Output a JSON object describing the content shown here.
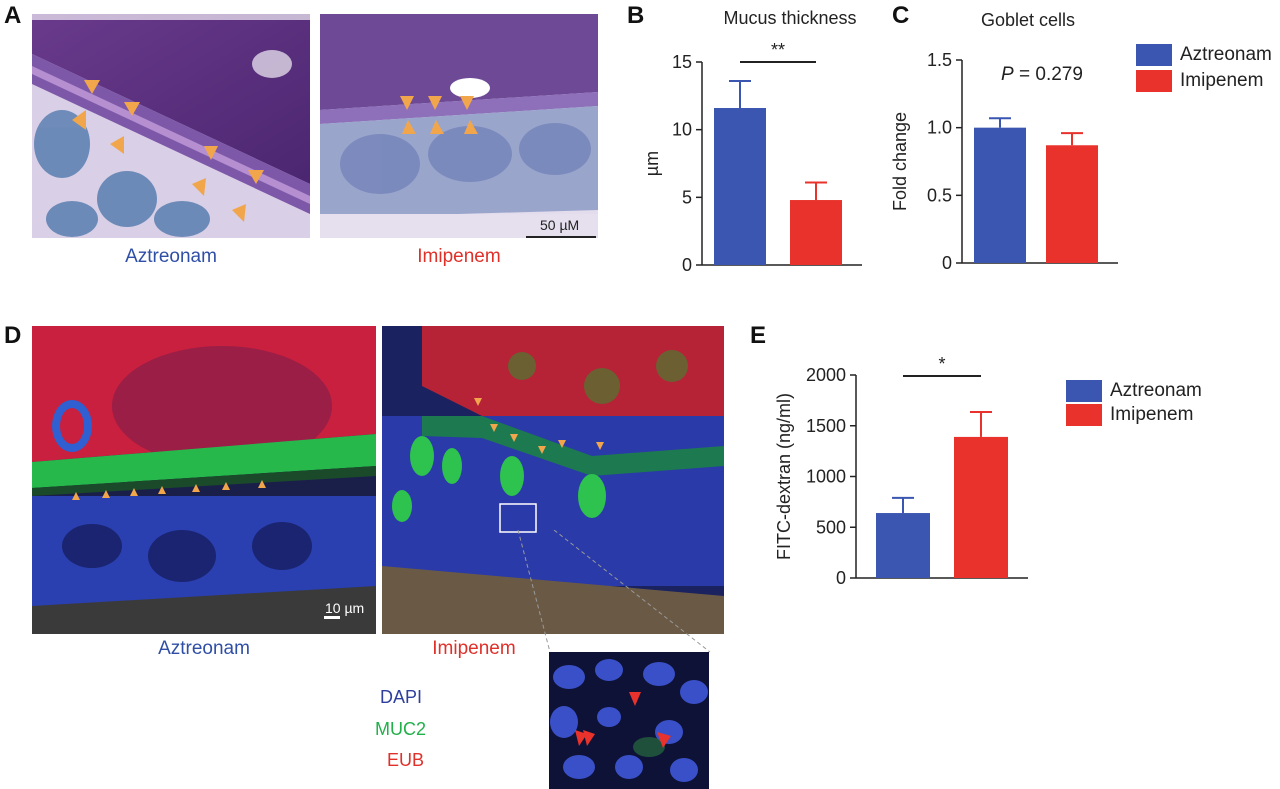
{
  "panels": {
    "A": {
      "letter": "A",
      "left_caption": "Aztreonam",
      "right_caption": "Imipenem",
      "scale_bar": "50 µM"
    },
    "D": {
      "letter": "D",
      "left_caption": "Aztreonam",
      "right_caption": "Imipenem",
      "scale_bar": "10 µm",
      "stains": [
        "DAPI",
        "MUC2",
        "EUB"
      ]
    },
    "B": {
      "letter": "B"
    },
    "C": {
      "letter": "C"
    },
    "E": {
      "letter": "E"
    }
  },
  "colors": {
    "aztreonam": "#3a56b0",
    "imipenem": "#e8322b",
    "dapi": "#2f3f9e",
    "muc2": "#22b04a",
    "eub": "#e0302a",
    "arrowhead": "#f2a64b"
  },
  "legends": [
    {
      "items": [
        "Aztreonam",
        "Imipenem"
      ]
    },
    {
      "items": [
        "Aztreonam",
        "Imipenem"
      ]
    }
  ],
  "chart_data": [
    {
      "id": "B",
      "type": "bar",
      "title": "Mucus thickness",
      "ylabel": "µm",
      "categories": [
        "Aztreonam",
        "Imipenem"
      ],
      "values": [
        11.6,
        4.8
      ],
      "errors": [
        2.0,
        1.3
      ],
      "ylim": [
        0,
        15
      ],
      "yticks": [
        0,
        5,
        10,
        15
      ],
      "annotation": "**"
    },
    {
      "id": "C",
      "type": "bar",
      "title": "Goblet cells",
      "ylabel": "Fold change",
      "categories": [
        "Aztreonam",
        "Imipenem"
      ],
      "values": [
        1.0,
        0.87
      ],
      "errors": [
        0.07,
        0.09
      ],
      "ylim": [
        0,
        1.5
      ],
      "yticks": [
        0,
        0.5,
        1.0,
        1.5
      ],
      "ytick_labels": [
        "0",
        "0.5",
        "1.0",
        "1.5"
      ],
      "annotation_italic": "P",
      "annotation": " = 0.279"
    },
    {
      "id": "E",
      "type": "bar",
      "title": "",
      "ylabel": "FITC-dextran (ng/ml)",
      "categories": [
        "Aztreonam",
        "Imipenem"
      ],
      "values": [
        640,
        1390
      ],
      "errors": [
        150,
        245
      ],
      "ylim": [
        0,
        2000
      ],
      "yticks": [
        0,
        500,
        1000,
        1500,
        2000
      ],
      "annotation": "*"
    }
  ]
}
